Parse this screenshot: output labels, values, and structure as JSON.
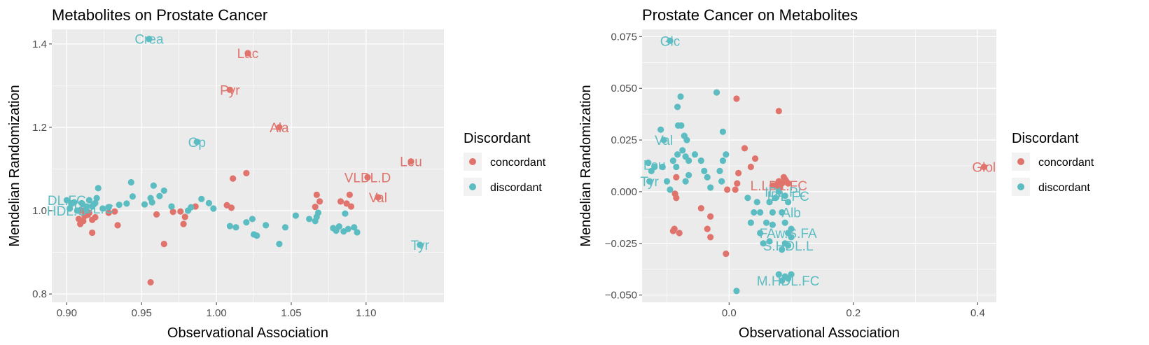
{
  "colors": {
    "concordant": "#e0736b",
    "discordant": "#5bbcc2",
    "panel_bg": "#ebebeb",
    "grid": "#ffffff",
    "tick_text": "#4d4d4d"
  },
  "chart_data": [
    {
      "type": "scatter",
      "title": "Metabolites on Prostate Cancer",
      "xlabel": "Observational Association",
      "ylabel": "Mendelian Randomization",
      "xlim": [
        0.89,
        1.152
      ],
      "ylim": [
        0.78,
        1.435
      ],
      "xticks": [
        0.9,
        0.95,
        1.0,
        1.05,
        1.1
      ],
      "xtick_labels": [
        "0.90",
        "0.95",
        "1.00",
        "1.05",
        "1.10"
      ],
      "yticks": [
        0.8,
        1.0,
        1.2,
        1.4
      ],
      "ytick_labels": [
        "0.8",
        "1.0",
        "1.2",
        "1.4"
      ],
      "grid": true,
      "legend": {
        "title": "Discordant",
        "position": "right",
        "entries": [
          "concordant",
          "discordant"
        ]
      },
      "series": [
        {
          "name": "concordant",
          "points": [
            [
              1.021,
              1.378
            ],
            [
              1.009,
              1.29
            ],
            [
              1.042,
              1.2
            ],
            [
              1.13,
              1.118
            ],
            [
              1.101,
              1.08
            ],
            [
              1.108,
              1.032
            ],
            [
              1.02,
              1.09
            ],
            [
              1.011,
              1.077
            ],
            [
              1.067,
              1.038
            ],
            [
              1.069,
              1.022
            ],
            [
              1.066,
              1.009
            ],
            [
              1.083,
              1.022
            ],
            [
              1.087,
              1.017
            ],
            [
              1.09,
              1.01
            ],
            [
              1.089,
              1.038
            ],
            [
              1.007,
              1.013
            ],
            [
              1.01,
              1.007
            ],
            [
              0.986,
              1.01
            ],
            [
              0.976,
              0.998
            ],
            [
              0.971,
              0.997
            ],
            [
              0.979,
              0.985
            ],
            [
              0.978,
              0.968
            ],
            [
              0.96,
              0.991
            ],
            [
              0.965,
              0.92
            ],
            [
              0.956,
              0.828
            ],
            [
              0.932,
              0.998
            ],
            [
              0.928,
              0.995
            ],
            [
              0.934,
              0.965
            ],
            [
              0.919,
              0.984
            ],
            [
              0.917,
              0.978
            ],
            [
              0.917,
              0.947
            ],
            [
              0.911,
              0.975
            ],
            [
              0.909,
              0.968
            ],
            [
              0.912,
              0.987
            ],
            [
              0.914,
              0.99
            ],
            [
              0.908,
              0.98
            ],
            [
              0.915,
              0.995
            ],
            [
              0.91,
              1.0
            ]
          ],
          "labels": [
            {
              "text": "Lac",
              "x": 1.021,
              "y": 1.378
            },
            {
              "text": "Pyr",
              "x": 1.009,
              "y": 1.29
            },
            {
              "text": "Ala",
              "x": 1.042,
              "y": 1.2
            },
            {
              "text": "Leu",
              "x": 1.13,
              "y": 1.118
            },
            {
              "text": "VLDL.D",
              "x": 1.101,
              "y": 1.08
            },
            {
              "text": "Val",
              "x": 1.108,
              "y": 1.032
            }
          ]
        },
        {
          "name": "discordant",
          "points": [
            [
              0.955,
              1.412
            ],
            [
              0.987,
              1.165
            ],
            [
              1.136,
              0.918
            ],
            [
              0.943,
              1.068
            ],
            [
              0.958,
              1.06
            ],
            [
              0.921,
              1.054
            ],
            [
              0.944,
              1.034
            ],
            [
              0.965,
              1.048
            ],
            [
              0.94,
              1.017
            ],
            [
              0.956,
              1.03
            ],
            [
              0.962,
              1.035
            ],
            [
              0.957,
              1.02
            ],
            [
              0.952,
              1.015
            ],
            [
              0.935,
              1.014
            ],
            [
              0.97,
              1.01
            ],
            [
              0.983,
              1.008
            ],
            [
              0.99,
              1.028
            ],
            [
              0.995,
              1.018
            ],
            [
              0.998,
              1.005
            ],
            [
              0.981,
              1.0
            ],
            [
              1.009,
              0.963
            ],
            [
              1.013,
              0.96
            ],
            [
              1.02,
              0.972
            ],
            [
              1.024,
              0.98
            ],
            [
              1.025,
              0.943
            ],
            [
              1.027,
              0.94
            ],
            [
              1.033,
              0.965
            ],
            [
              1.046,
              0.96
            ],
            [
              1.042,
              0.92
            ],
            [
              1.053,
              0.988
            ],
            [
              1.062,
              0.98
            ],
            [
              1.066,
              0.975
            ],
            [
              1.067,
              0.985
            ],
            [
              1.068,
              0.995
            ],
            [
              1.078,
              0.958
            ],
            [
              1.08,
              0.952
            ],
            [
              1.082,
              0.962
            ],
            [
              1.085,
              0.95
            ],
            [
              1.088,
              0.956
            ],
            [
              1.092,
              0.96
            ],
            [
              1.094,
              0.948
            ],
            [
              1.086,
              0.993
            ],
            [
              0.9,
              1.025
            ],
            [
              0.905,
              1.02
            ],
            [
              0.91,
              1.018
            ],
            [
              0.915,
              1.025
            ],
            [
              0.92,
              1.03
            ],
            [
              0.902,
              1.005
            ],
            [
              0.907,
              1.0
            ],
            [
              0.913,
              1.01
            ],
            [
              0.918,
              1.015
            ],
            [
              0.924,
              1.005
            ],
            [
              0.928,
              1.008
            ],
            [
              0.919,
              1.018
            ],
            [
              0.917,
              1.01
            ],
            [
              0.913,
              1.003
            ],
            [
              0.903,
              1.016
            ]
          ],
          "labels": [
            {
              "text": "Crea",
              "x": 0.955,
              "y": 1.412
            },
            {
              "text": "Gp",
              "x": 0.987,
              "y": 1.165
            },
            {
              "text": "Tyr",
              "x": 1.136,
              "y": 0.918
            },
            {
              "text": "DL.FC",
              "x": 0.9,
              "y": 1.025
            },
            {
              "text": "HDL.C",
              "x": 0.9,
              "y": 1.0
            },
            {
              "text": "HDL.C",
              "x": 0.918,
              "y": 1.005
            }
          ]
        }
      ]
    },
    {
      "type": "scatter",
      "title": "Prostate Cancer on Metabolites",
      "xlabel": "Observational Association",
      "ylabel": "Mendelian Randomization",
      "xlim": [
        -0.14,
        0.43
      ],
      "ylim": [
        -0.0535,
        0.0785
      ],
      "xticks": [
        0.0,
        0.2,
        0.4
      ],
      "xtick_labels": [
        "0.0",
        "0.2",
        "0.4"
      ],
      "yticks": [
        -0.05,
        -0.025,
        0.0,
        0.025,
        0.05,
        0.075
      ],
      "ytick_labels": [
        "−0.050",
        "−0.025",
        "0.000",
        "0.025",
        "0.050",
        "0.075"
      ],
      "grid": true,
      "legend": {
        "title": "Discordant",
        "position": "right",
        "entries": [
          "concordant",
          "discordant"
        ]
      },
      "series": [
        {
          "name": "concordant",
          "points": [
            [
              0.41,
              0.012
            ],
            [
              0.012,
              0.045
            ],
            [
              0.08,
              0.039
            ],
            [
              0.025,
              0.021
            ],
            [
              0.042,
              0.016
            ],
            [
              0.035,
              0.012
            ],
            [
              0.015,
              0.009
            ],
            [
              0.013,
              0.004
            ],
            [
              0.01,
              0.001
            ],
            [
              -0.003,
              0.001
            ],
            [
              -0.085,
              0.007
            ],
            [
              -0.087,
              -0.001
            ],
            [
              -0.085,
              -0.003
            ],
            [
              -0.09,
              -0.019
            ],
            [
              -0.088,
              -0.018
            ],
            [
              -0.08,
              -0.02
            ],
            [
              -0.045,
              -0.008
            ],
            [
              -0.03,
              -0.012
            ],
            [
              -0.035,
              -0.018
            ],
            [
              -0.03,
              -0.022
            ],
            [
              -0.005,
              -0.03
            ],
            [
              0.095,
              0.004
            ],
            [
              0.07,
              0.003
            ],
            [
              0.09,
              0.006
            ],
            [
              0.085,
              0.004
            ],
            [
              0.08,
              0.005
            ],
            [
              0.075,
              0.003
            ],
            [
              0.088,
              0.007
            ],
            [
              0.092,
              0.005
            ],
            [
              0.082,
              0.002
            ]
          ],
          "labels": [
            {
              "text": "Glol",
              "x": 0.41,
              "y": 0.012
            },
            {
              "text": "L.LDL.FC",
              "x": 0.08,
              "y": 0.003
            }
          ]
        },
        {
          "name": "discordant",
          "points": [
            [
              -0.095,
              0.073
            ],
            [
              -0.078,
              0.046
            ],
            [
              -0.083,
              0.041
            ],
            [
              -0.082,
              0.032
            ],
            [
              -0.077,
              0.032
            ],
            [
              -0.072,
              0.027
            ],
            [
              -0.068,
              0.025
            ],
            [
              -0.083,
              0.018
            ],
            [
              -0.075,
              0.02
            ],
            [
              -0.09,
              0.015
            ],
            [
              -0.085,
              0.012
            ],
            [
              -0.07,
              0.017
            ],
            [
              -0.065,
              0.015
            ],
            [
              -0.07,
              0.005
            ],
            [
              -0.065,
              0.008
            ],
            [
              -0.055,
              0.018
            ],
            [
              -0.04,
              0.01
            ],
            [
              -0.045,
              0.015
            ],
            [
              -0.035,
              0.007
            ],
            [
              -0.03,
              0.002
            ],
            [
              -0.02,
              0.048
            ],
            [
              -0.01,
              0.029
            ],
            [
              -0.01,
              0.015
            ],
            [
              -0.015,
              0.01
            ],
            [
              -0.005,
              0.018
            ],
            [
              -0.012,
              0.005
            ],
            [
              -0.095,
              0.001
            ],
            [
              -0.1,
              0.005
            ],
            [
              -0.107,
              0.012
            ],
            [
              -0.12,
              0.012
            ],
            [
              -0.128,
              0.005
            ],
            [
              -0.13,
              0.014
            ],
            [
              -0.125,
              0.01
            ],
            [
              -0.105,
              0.025
            ],
            [
              -0.11,
              0.03
            ],
            [
              0.03,
              -0.003
            ],
            [
              0.04,
              -0.01
            ],
            [
              0.045,
              -0.005
            ],
            [
              0.05,
              -0.01
            ],
            [
              0.06,
              -0.015
            ],
            [
              0.065,
              -0.005
            ],
            [
              0.07,
              -0.01
            ],
            [
              0.075,
              -0.003
            ],
            [
              0.08,
              0.0
            ],
            [
              0.09,
              -0.002
            ],
            [
              0.095,
              -0.005
            ],
            [
              0.085,
              -0.01
            ],
            [
              0.09,
              -0.015
            ],
            [
              0.095,
              -0.02
            ],
            [
              0.1,
              -0.018
            ],
            [
              0.05,
              -0.02
            ],
            [
              0.055,
              -0.025
            ],
            [
              0.065,
              -0.024
            ],
            [
              0.07,
              -0.016
            ],
            [
              0.085,
              -0.028
            ],
            [
              0.09,
              -0.025
            ],
            [
              0.095,
              -0.026
            ],
            [
              0.1,
              -0.022
            ],
            [
              0.08,
              -0.04
            ],
            [
              0.085,
              -0.043
            ],
            [
              0.09,
              -0.041
            ],
            [
              0.095,
              -0.042
            ],
            [
              0.1,
              -0.04
            ],
            [
              0.012,
              -0.048
            ],
            [
              0.035,
              -0.015
            ]
          ],
          "labels": [
            {
              "text": "Glc",
              "x": -0.095,
              "y": 0.073
            },
            {
              "text": "Val",
              "x": -0.105,
              "y": 0.025
            },
            {
              "text": "Leu",
              "x": -0.12,
              "y": 0.013
            },
            {
              "text": "Tyr",
              "x": -0.128,
              "y": 0.005
            },
            {
              "text": "IDL.FC",
              "x": 0.095,
              "y": -0.002
            },
            {
              "text": "IDL.PL",
              "x": 0.09,
              "y": 0.0
            },
            {
              "text": "Alb",
              "x": 0.1,
              "y": -0.01
            },
            {
              "text": "FAw.S.FA",
              "x": 0.095,
              "y": -0.02
            },
            {
              "text": "S.HDL.L",
              "x": 0.095,
              "y": -0.026
            },
            {
              "text": "M.HDL.FC",
              "x": 0.095,
              "y": -0.043
            }
          ]
        }
      ]
    }
  ]
}
